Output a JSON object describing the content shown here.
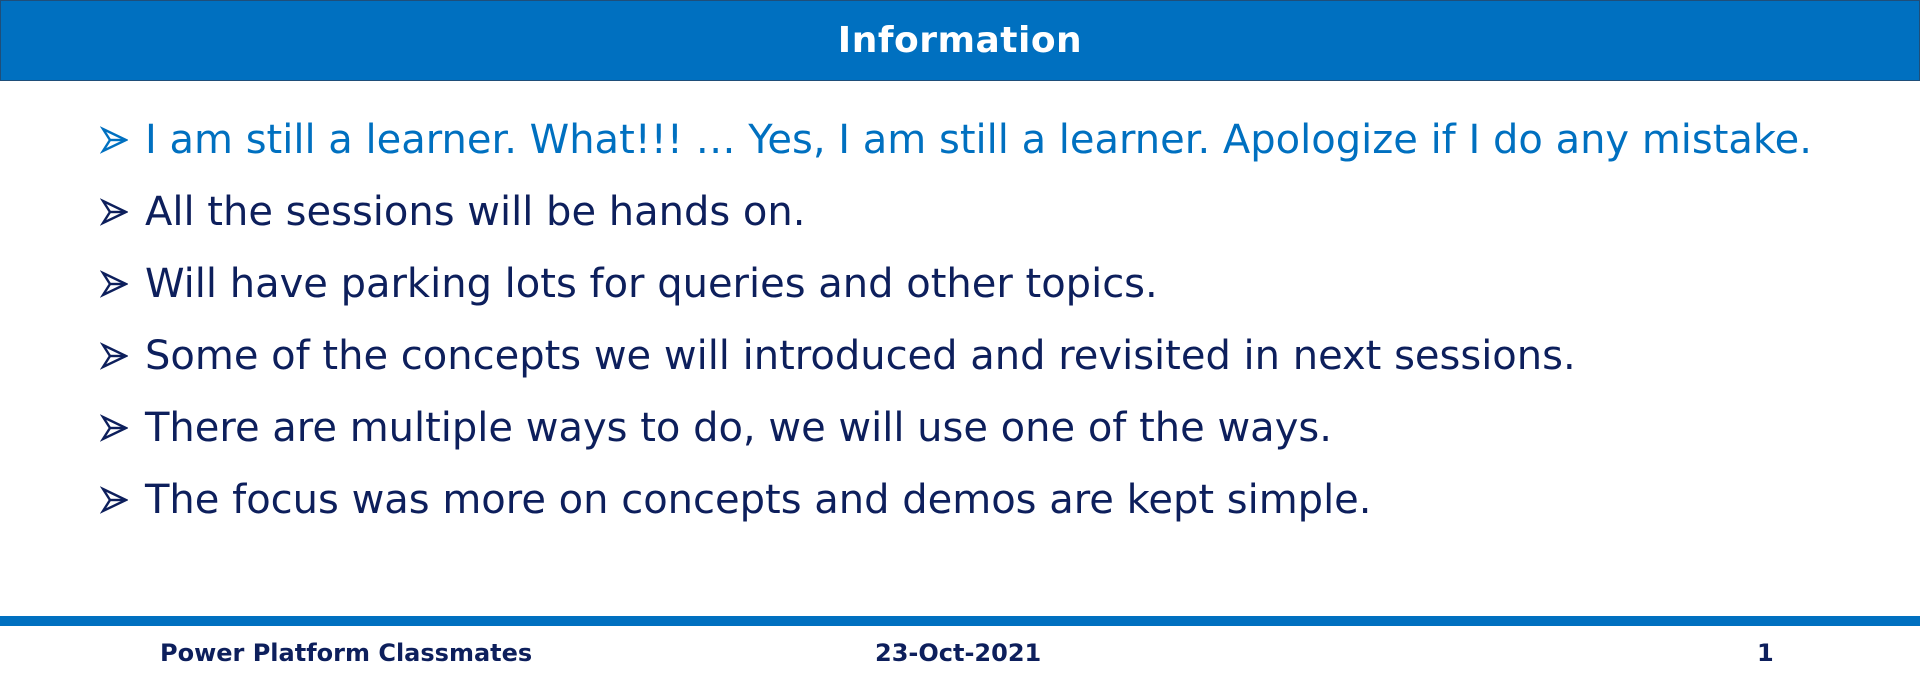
{
  "slide": {
    "title": "Information",
    "colors": {
      "header_bg": "#0070c0",
      "highlight_text": "#0070c0",
      "body_text": "#0d1f5c",
      "footer_text": "#0d1f5c"
    },
    "bullet_icon": "arrowhead-bullet-icon",
    "bullets": [
      {
        "text": "I am still a learner. What!!! … Yes, I am still a learner. Apologize if I do any mistake.",
        "highlighted": true
      },
      {
        "text": "All the sessions will be hands on.",
        "highlighted": false
      },
      {
        "text": "Will have parking lots for queries and other topics.",
        "highlighted": false
      },
      {
        "text": "Some of the concepts we will introduced and revisited in next sessions.",
        "highlighted": false
      },
      {
        "text": "There are multiple ways to do, we will use one of the ways.",
        "highlighted": false
      },
      {
        "text": "The focus was more on concepts and demos are kept simple.",
        "highlighted": false
      }
    ]
  },
  "footer": {
    "left": "Power Platform Classmates",
    "center": "23-Oct-2021",
    "right": "1"
  }
}
